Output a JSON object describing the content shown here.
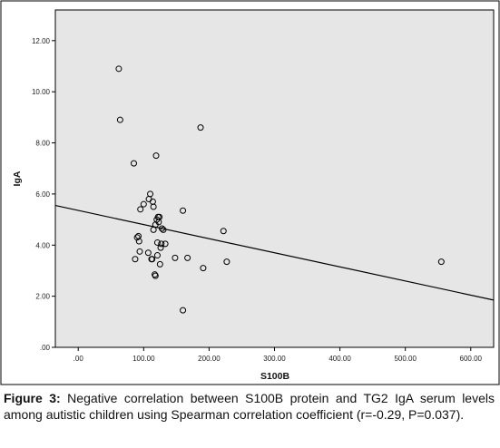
{
  "chart_data": {
    "type": "scatter",
    "xlabel": "S100B",
    "ylabel": "IgA",
    "xlim": [
      -35,
      635
    ],
    "ylim": [
      0,
      13.2
    ],
    "x_ticks": [
      0,
      100,
      200,
      300,
      400,
      500,
      600
    ],
    "x_tick_labels": [
      ".00",
      "100.00",
      "200.00",
      "300.00",
      "400.00",
      "500.00",
      "600.00"
    ],
    "y_ticks": [
      0,
      2,
      4,
      6,
      8,
      10,
      12
    ],
    "y_tick_labels": [
      ".00",
      "2.00",
      "4.00",
      "6.00",
      "8.00",
      "10.00",
      "12.00"
    ],
    "grid": false,
    "plot_background": "#e6e6e6",
    "point_style": "open-circle",
    "points": [
      [
        62,
        10.9
      ],
      [
        64,
        8.9
      ],
      [
        85,
        7.2
      ],
      [
        87,
        3.45
      ],
      [
        90,
        4.3
      ],
      [
        92,
        4.35
      ],
      [
        93,
        4.15
      ],
      [
        94,
        3.75
      ],
      [
        95,
        5.4
      ],
      [
        100,
        5.6
      ],
      [
        107,
        3.7
      ],
      [
        108,
        5.8
      ],
      [
        110,
        6.0
      ],
      [
        112,
        3.45
      ],
      [
        113,
        3.45
      ],
      [
        114,
        5.7
      ],
      [
        115,
        5.5
      ],
      [
        115,
        4.6
      ],
      [
        117,
        2.85
      ],
      [
        118,
        2.8
      ],
      [
        118,
        4.8
      ],
      [
        119,
        7.5
      ],
      [
        120,
        5.0
      ],
      [
        121,
        3.6
      ],
      [
        121,
        4.1
      ],
      [
        122,
        5.1
      ],
      [
        123,
        4.9
      ],
      [
        124,
        5.1
      ],
      [
        125,
        3.25
      ],
      [
        126,
        3.9
      ],
      [
        127,
        4.05
      ],
      [
        128,
        4.65
      ],
      [
        130,
        4.6
      ],
      [
        133,
        4.05
      ],
      [
        148,
        3.5
      ],
      [
        160,
        5.35
      ],
      [
        160,
        1.45
      ],
      [
        167,
        3.5
      ],
      [
        187,
        8.6
      ],
      [
        191,
        3.1
      ],
      [
        222,
        4.55
      ],
      [
        227,
        3.35
      ],
      [
        555,
        3.35
      ]
    ],
    "fit_line": {
      "x": [
        -35,
        635
      ],
      "y": [
        5.55,
        1.85
      ]
    }
  },
  "caption": {
    "label": "Figure 3:",
    "text": " Negative correlation between S100B protein and TG2 IgA serum levels among autistic children using Spearman correlation coefficient (r=-0.29, P=0.037)."
  }
}
